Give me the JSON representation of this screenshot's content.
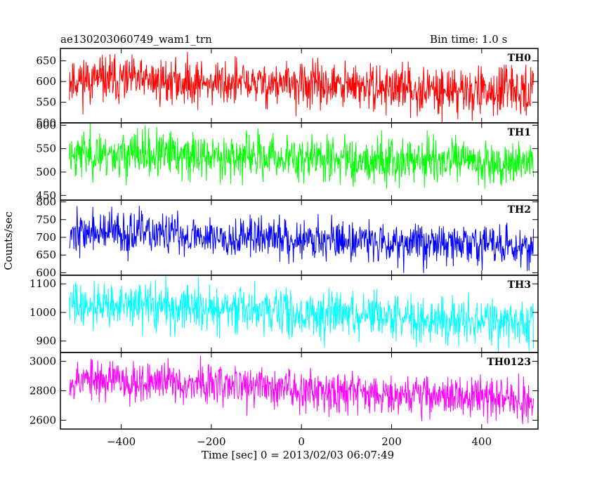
{
  "chart_data": {
    "type": "line",
    "title": "ae130203060749_wam1_trn",
    "subtitle": "Bin time: 1.0 s",
    "xlabel": "Time [sec] 0 = 2013/02/03 06:07:49",
    "ylabel": "Counts/sec",
    "xlim": [
      -535,
      525
    ],
    "x_range": [
      -515,
      515
    ],
    "x_ticks": [
      -400,
      -200,
      0,
      200,
      400
    ],
    "x_tick_labels": [
      "−400",
      "−200",
      "0",
      "200",
      "400"
    ],
    "grid": false,
    "panels": [
      {
        "name": "TH0",
        "color": "#ff0000",
        "ylim": [
          500,
          680
        ],
        "y_ticks": [
          500,
          550,
          600,
          650
        ],
        "y_tick_labels": [
          "500",
          "550",
          "600",
          "650"
        ],
        "x": [
          -515,
          -400,
          -300,
          -200,
          -100,
          0,
          100,
          200,
          300,
          400,
          515
        ],
        "values": [
          605,
          603,
          600,
          598,
          595,
          592,
          588,
          584,
          580,
          577,
          574
        ],
        "noise": 38,
        "seed": 11
      },
      {
        "name": "TH1",
        "color": "#00ff00",
        "ylim": [
          440,
          605
        ],
        "y_ticks": [
          450,
          500,
          550,
          600
        ],
        "y_tick_labels": [
          "450",
          "500",
          "550",
          "600"
        ],
        "x": [
          -515,
          -400,
          -300,
          -200,
          -100,
          0,
          100,
          200,
          300,
          400,
          515
        ],
        "values": [
          540,
          538,
          536,
          534,
          532,
          530,
          528,
          526,
          524,
          522,
          520
        ],
        "noise": 34,
        "seed": 23
      },
      {
        "name": "TH2",
        "color": "#0000ff",
        "ylim": [
          593,
          805
        ],
        "y_ticks": [
          600,
          650,
          700,
          750,
          800
        ],
        "y_tick_labels": [
          "600",
          "650",
          "700",
          "750",
          "800"
        ],
        "x": [
          -515,
          -400,
          -300,
          -200,
          -100,
          0,
          100,
          200,
          300,
          400,
          515
        ],
        "values": [
          715,
          712,
          708,
          704,
          700,
          696,
          692,
          688,
          684,
          680,
          675
        ],
        "noise": 40,
        "seed": 37
      },
      {
        "name": "TH3",
        "color": "#00ffff",
        "ylim": [
          860,
          1130
        ],
        "y_ticks": [
          900,
          1000,
          1100
        ],
        "y_tick_labels": [
          "900",
          "1000",
          "1100"
        ],
        "x": [
          -515,
          -400,
          -300,
          -200,
          -100,
          0,
          100,
          200,
          300,
          400,
          515
        ],
        "values": [
          1030,
          1025,
          1020,
          1012,
          1005,
          998,
          990,
          983,
          976,
          968,
          960
        ],
        "noise": 55,
        "seed": 41
      },
      {
        "name": "TH0123",
        "color": "#ff00ff",
        "ylim": [
          2540,
          3060
        ],
        "y_ticks": [
          2600,
          2800,
          3000
        ],
        "y_tick_labels": [
          "2600",
          "2800",
          "3000"
        ],
        "x": [
          -515,
          -400,
          -300,
          -200,
          -100,
          0,
          100,
          200,
          300,
          400,
          515
        ],
        "values": [
          2880,
          2870,
          2860,
          2845,
          2830,
          2815,
          2800,
          2785,
          2770,
          2755,
          2740
        ],
        "noise": 95,
        "seed": 53
      }
    ]
  }
}
